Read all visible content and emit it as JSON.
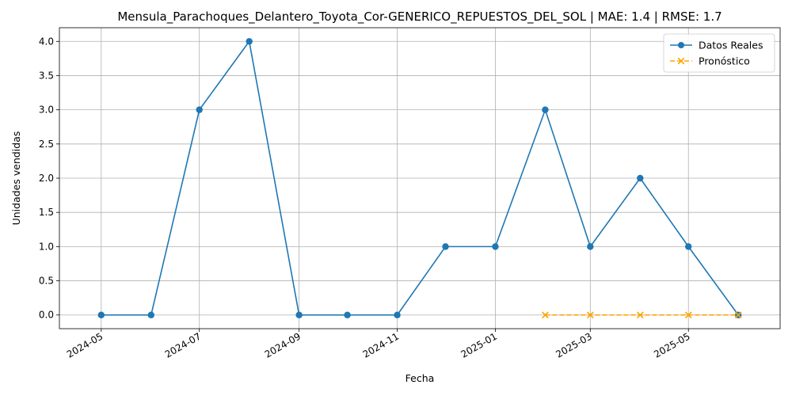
{
  "chart_data": {
    "type": "line",
    "title": "Mensula_Parachoques_Delantero_Toyota_Cor-GENERICO_REPUESTOS_DEL_SOL | MAE: 1.4 | RMSE: 1.7",
    "xlabel": "Fecha",
    "ylabel": "Unidades vendidas",
    "ylim": [
      -0.2,
      4.2
    ],
    "xlim": [
      "2024-04-05",
      "2025-06-27"
    ],
    "grid": true,
    "legend_position": "top-right",
    "x_ticks": [
      "2024-05",
      "2024-07",
      "2024-09",
      "2024-11",
      "2025-01",
      "2025-03",
      "2025-05"
    ],
    "y_ticks": [
      "0.0",
      "0.5",
      "1.0",
      "1.5",
      "2.0",
      "2.5",
      "3.0",
      "3.5",
      "4.0"
    ],
    "series": [
      {
        "name": "Datos Reales",
        "color": "#1f77b4",
        "marker": "circle",
        "line_style": "solid",
        "x": [
          "2024-05-01",
          "2024-06-01",
          "2024-07-01",
          "2024-08-01",
          "2024-09-01",
          "2024-10-01",
          "2024-11-01",
          "2024-12-01",
          "2025-01-01",
          "2025-02-01",
          "2025-03-01",
          "2025-04-01",
          "2025-05-01",
          "2025-06-01"
        ],
        "values": [
          0,
          0,
          3,
          4,
          0,
          0,
          0,
          1,
          1,
          3,
          1,
          2,
          1,
          0
        ]
      },
      {
        "name": "Pronóstico",
        "color": "#ffa500",
        "marker": "x",
        "line_style": "dashed",
        "x": [
          "2025-02-01",
          "2025-03-01",
          "2025-04-01",
          "2025-05-01",
          "2025-06-01"
        ],
        "values": [
          0,
          0,
          0,
          0,
          0
        ]
      }
    ]
  }
}
